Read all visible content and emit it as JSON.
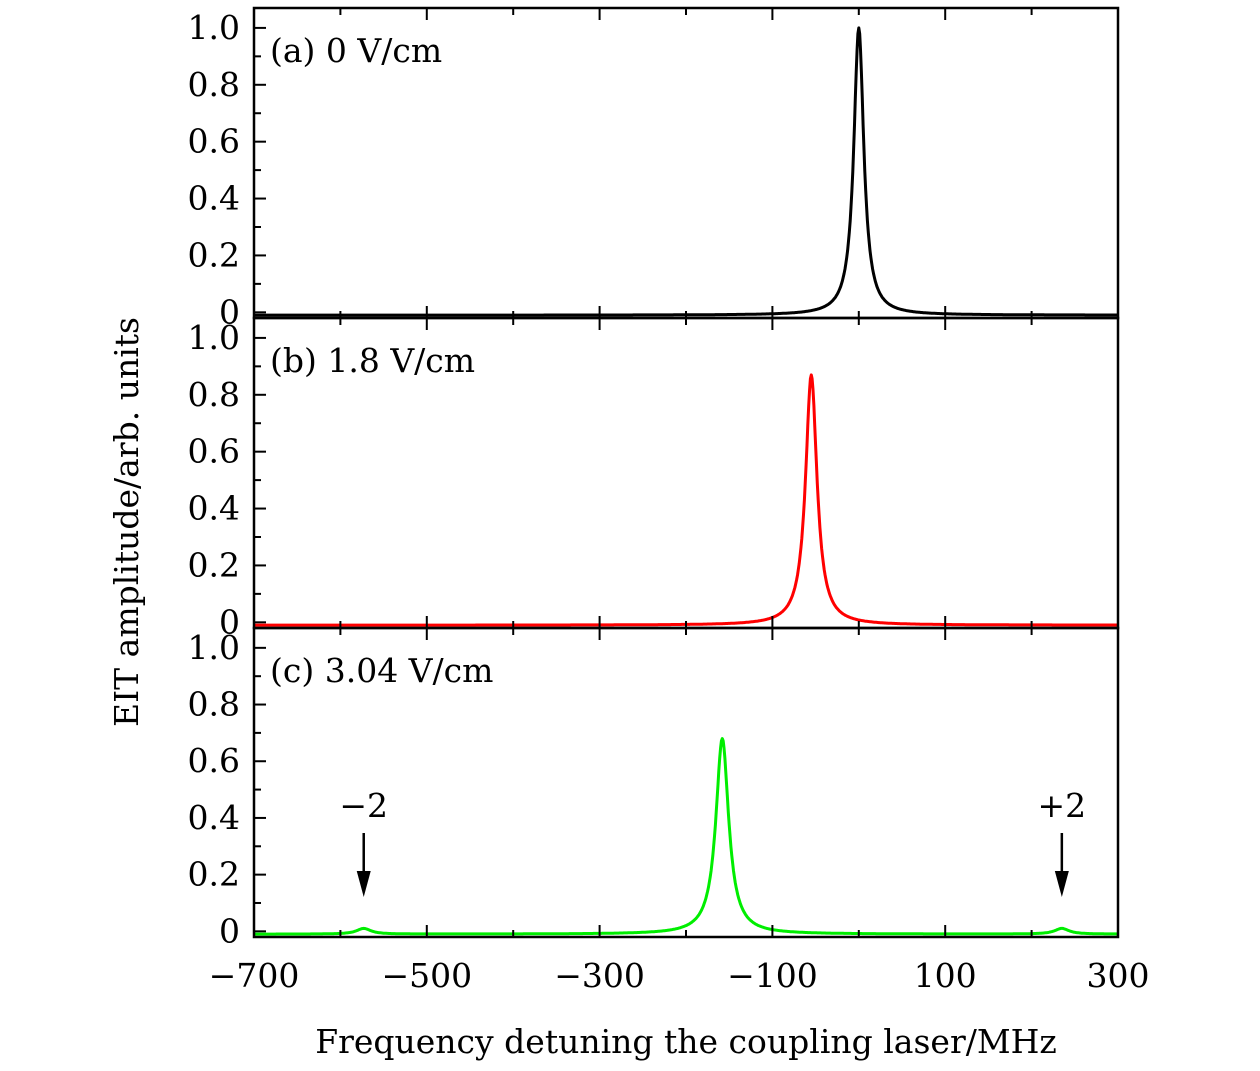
{
  "chart_data": {
    "type": "line",
    "layout": "three vertically stacked panels sharing x axis",
    "xlabel": "Frequency detuning the coupling laser/MHz",
    "ylabel": "EIT amplitude/arb. units",
    "xlim": [
      -700,
      300
    ],
    "ylim": [
      -0.02,
      1.07
    ],
    "x_ticks": [
      -700,
      -500,
      -300,
      -100,
      100,
      300
    ],
    "x_tick_labels": [
      "−700",
      "−500",
      "−300",
      "−100",
      "100",
      "300"
    ],
    "y_ticks": [
      0,
      0.2,
      0.4,
      0.6,
      0.8,
      1.0
    ],
    "y_tick_labels": [
      "0",
      "0.2",
      "0.4",
      "0.6",
      "0.8",
      "1.0"
    ],
    "panels": [
      {
        "label": "(a) 0 V/cm",
        "color": "#000000",
        "baseline": -0.01,
        "peaks": [
          {
            "center": 0,
            "amplitude": 1.01,
            "width": 7
          }
        ]
      },
      {
        "label": "(b) 1.8 V/cm",
        "color": "#ff0000",
        "baseline": -0.01,
        "peaks": [
          {
            "center": -55,
            "amplitude": 0.88,
            "width": 8
          }
        ]
      },
      {
        "label": "(c) 3.04 V/cm",
        "color": "#00ee00",
        "baseline": -0.01,
        "peaks": [
          {
            "center": -158,
            "amplitude": 0.69,
            "width": 9
          },
          {
            "center": -573,
            "amplitude": 0.02,
            "width": 10
          },
          {
            "center": 235,
            "amplitude": 0.02,
            "width": 10
          }
        ],
        "annotations": [
          {
            "text": "−2",
            "x": -573
          },
          {
            "text": "+2",
            "x": 235
          }
        ]
      }
    ]
  }
}
